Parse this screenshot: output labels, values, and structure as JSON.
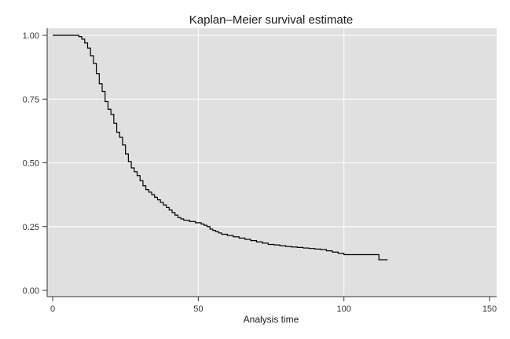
{
  "chart_data": {
    "type": "line",
    "title": "Kaplan–Meier survival estimate",
    "xlabel": "Analysis time",
    "ylabel": "",
    "xlim": [
      0,
      150
    ],
    "ylim": [
      0,
      1
    ],
    "x_ticks": [
      "0",
      "50",
      "100",
      "150"
    ],
    "y_ticks": [
      "0.00",
      "0.25",
      "0.50",
      "0.75",
      "1.00"
    ],
    "grid": true,
    "legend": "none",
    "colors": {
      "background": "#e0e0e0",
      "grid": "#ffffff",
      "line": "#000000"
    },
    "series": [
      {
        "step": true,
        "x": [
          0,
          9,
          10,
          11,
          12,
          13,
          14,
          15,
          16,
          17,
          18,
          19,
          20,
          21,
          22,
          23,
          24,
          25,
          26,
          27,
          28,
          29,
          30,
          31,
          32,
          33,
          34,
          35,
          36,
          37,
          38,
          39,
          40,
          41,
          42,
          43,
          44,
          45,
          47,
          49,
          51,
          52,
          53,
          54,
          55,
          56,
          57,
          58,
          60,
          62,
          64,
          66,
          68,
          70,
          72,
          74,
          76,
          78,
          80,
          82,
          84,
          86,
          88,
          90,
          92,
          94,
          96,
          98,
          100,
          102,
          104,
          106,
          108,
          110,
          112,
          115
        ],
        "y": [
          1.0,
          0.995,
          0.985,
          0.97,
          0.95,
          0.92,
          0.89,
          0.85,
          0.81,
          0.78,
          0.74,
          0.71,
          0.69,
          0.655,
          0.62,
          0.6,
          0.57,
          0.535,
          0.505,
          0.48,
          0.465,
          0.45,
          0.43,
          0.41,
          0.395,
          0.385,
          0.375,
          0.365,
          0.355,
          0.345,
          0.335,
          0.325,
          0.315,
          0.305,
          0.295,
          0.285,
          0.28,
          0.275,
          0.27,
          0.265,
          0.26,
          0.255,
          0.25,
          0.24,
          0.235,
          0.23,
          0.225,
          0.22,
          0.215,
          0.21,
          0.205,
          0.2,
          0.195,
          0.19,
          0.185,
          0.18,
          0.178,
          0.175,
          0.172,
          0.17,
          0.168,
          0.166,
          0.164,
          0.162,
          0.16,
          0.155,
          0.15,
          0.145,
          0.14,
          0.14,
          0.14,
          0.14,
          0.14,
          0.14,
          0.12,
          0.12
        ]
      }
    ]
  }
}
